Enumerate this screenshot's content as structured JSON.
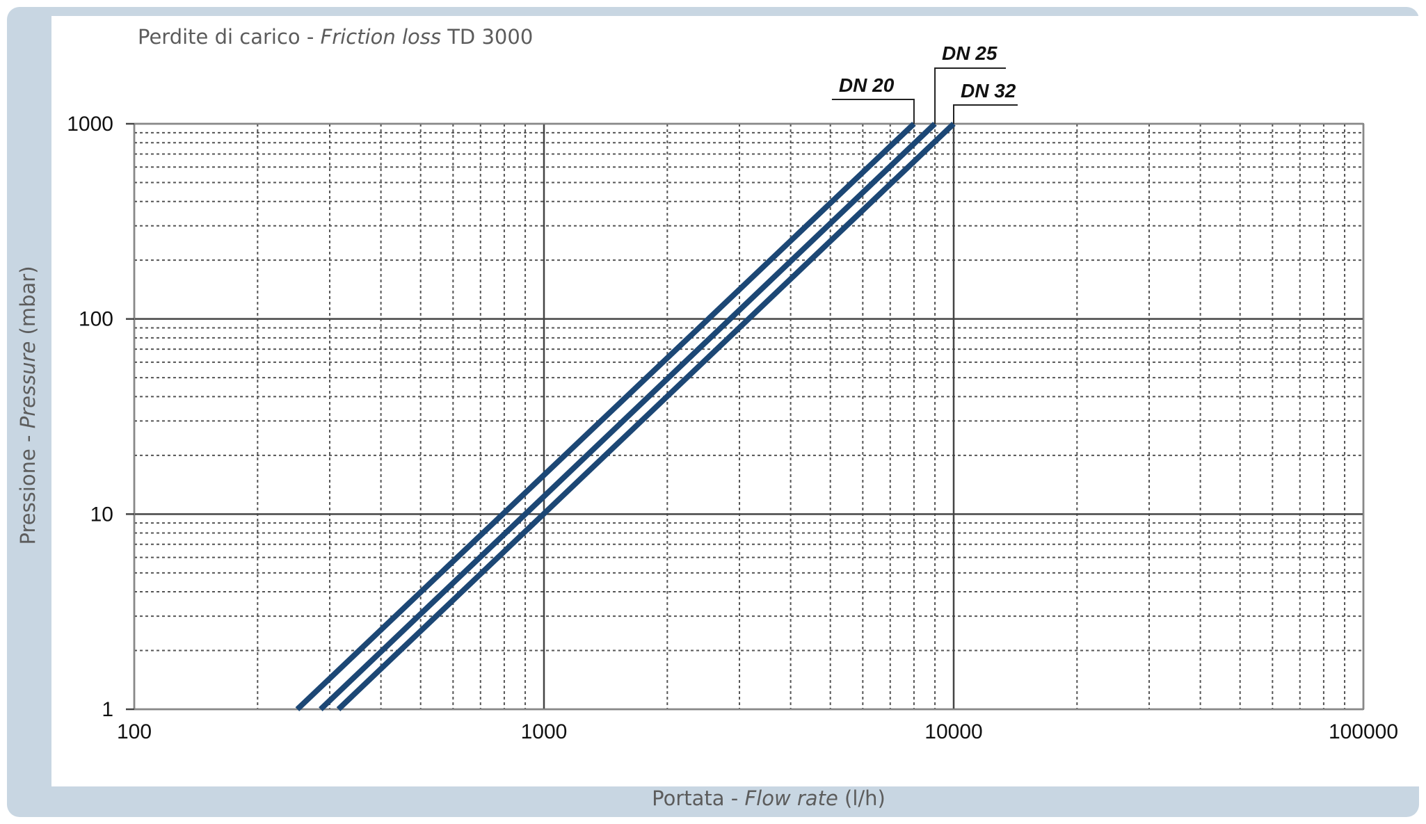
{
  "chart_data": {
    "type": "line",
    "title": {
      "prefix": "Perdite di carico - ",
      "italic": "Friction loss",
      "suffix": " TD 3000"
    },
    "xlabel": {
      "prefix": "Portata - ",
      "italic": "Flow rate",
      "suffix": " (l/h)"
    },
    "ylabel": {
      "prefix": "Pressione - ",
      "italic": "Pressure",
      "suffix": " (mbar)"
    },
    "x_scale": "log",
    "y_scale": "log",
    "xlim": [
      100,
      100000
    ],
    "ylim": [
      1,
      1000
    ],
    "x_ticks": [
      100,
      1000,
      10000,
      100000
    ],
    "x_tick_labels": [
      "100",
      "1000",
      "10000",
      "100000"
    ],
    "y_ticks": [
      1,
      10,
      100,
      1000
    ],
    "y_tick_labels": [
      "1",
      "10",
      "100",
      "1000"
    ],
    "grid": true,
    "line_color": "#1c4775",
    "series": [
      {
        "name": "DN 20",
        "x": [
          250,
          8000
        ],
        "y": [
          1,
          1000
        ]
      },
      {
        "name": "DN 25",
        "x": [
          285,
          9000
        ],
        "y": [
          1,
          1000
        ]
      },
      {
        "name": "DN 32",
        "x": [
          315,
          10000
        ],
        "y": [
          1,
          1000
        ]
      }
    ]
  }
}
